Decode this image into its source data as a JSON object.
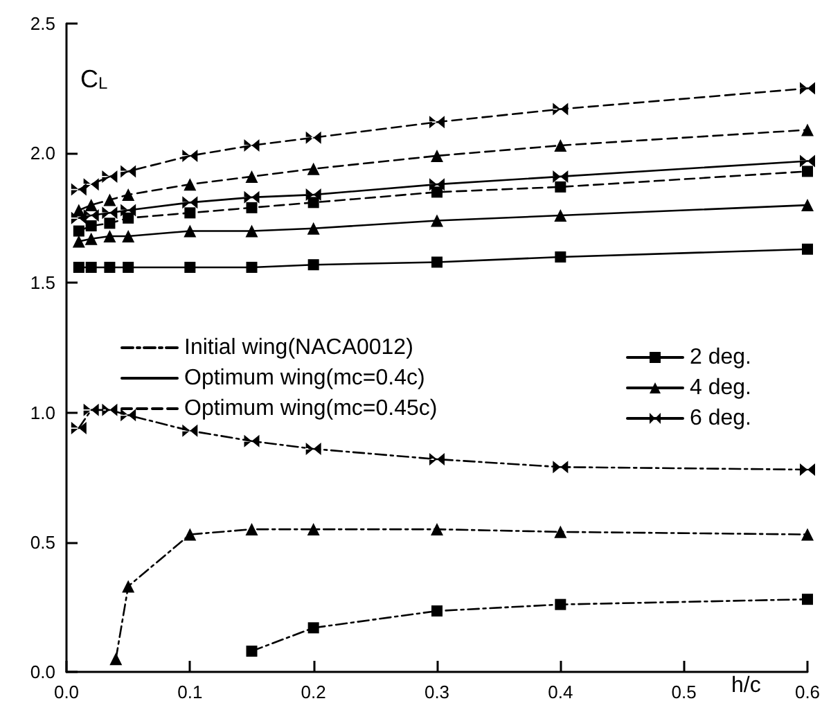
{
  "chart_data": {
    "type": "line",
    "xlabel": "h/c",
    "ylabel": "C$_{L}$",
    "xlim": [
      0,
      0.6
    ],
    "xticks": [
      {
        "value": 0,
        "label": "0.0"
      },
      0.1,
      0.2,
      0.3,
      0.4,
      0.5,
      0.6
    ],
    "ylim": [
      0,
      2.5
    ],
    "yticks": [
      {
        "value": 0,
        "label": "0.0"
      },
      0.5,
      {
        "value": 1,
        "label": "1.0"
      },
      1.5,
      {
        "value": 2,
        "label": "2.0"
      },
      2.5
    ],
    "grid": false,
    "legend": "center",
    "series": [
      {
        "color": "#000000",
        "line_style": "dashed",
        "marker": "star",
        "x": [
          0.01,
          0.02,
          0.035,
          0.05,
          0.1,
          0.15,
          0.2,
          0.3,
          0.4,
          0.6
        ],
        "values": [
          1.86,
          1.88,
          1.91,
          1.93,
          1.99,
          2.03,
          2.06,
          2.12,
          2.17,
          2.25
        ]
      },
      {
        "color": "#000000",
        "line_style": "dashed",
        "marker": "triangle",
        "x": [
          0.01,
          0.02,
          0.035,
          0.05,
          0.1,
          0.15,
          0.2,
          0.3,
          0.4,
          0.6
        ],
        "values": [
          1.78,
          1.8,
          1.82,
          1.84,
          1.88,
          1.91,
          1.94,
          1.99,
          2.03,
          2.09
        ]
      },
      {
        "color": "#000000",
        "line_style": "dashed",
        "marker": "square",
        "x": [
          0.01,
          0.02,
          0.035,
          0.05,
          0.1,
          0.15,
          0.2,
          0.3,
          0.4,
          0.6
        ],
        "values": [
          1.7,
          1.72,
          1.73,
          1.75,
          1.77,
          1.79,
          1.81,
          1.85,
          1.87,
          1.93
        ]
      },
      {
        "color": "#000000",
        "line_style": "solid",
        "marker": "star",
        "x": [
          0.01,
          0.02,
          0.035,
          0.05,
          0.1,
          0.15,
          0.2,
          0.3,
          0.4,
          0.6
        ],
        "values": [
          1.75,
          1.76,
          1.77,
          1.78,
          1.81,
          1.83,
          1.84,
          1.88,
          1.91,
          1.97
        ]
      },
      {
        "color": "#000000",
        "line_style": "solid",
        "marker": "triangle",
        "x": [
          0.01,
          0.02,
          0.035,
          0.05,
          0.1,
          0.15,
          0.2,
          0.3,
          0.4,
          0.6
        ],
        "values": [
          1.66,
          1.67,
          1.68,
          1.68,
          1.7,
          1.7,
          1.71,
          1.74,
          1.76,
          1.8
        ]
      },
      {
        "color": "#000000",
        "line_style": "solid",
        "marker": "square",
        "x": [
          0.01,
          0.02,
          0.035,
          0.05,
          0.1,
          0.15,
          0.2,
          0.3,
          0.4,
          0.6
        ],
        "values": [
          1.56,
          1.56,
          1.56,
          1.56,
          1.56,
          1.56,
          1.57,
          1.58,
          1.6,
          1.63
        ]
      },
      {
        "color": "#000000",
        "line_style": "dashdot",
        "marker": "star",
        "x": [
          0.01,
          0.02,
          0.035,
          0.05,
          0.1,
          0.15,
          0.2,
          0.3,
          0.4,
          0.6
        ],
        "values": [
          0.94,
          1.01,
          1.01,
          0.99,
          0.93,
          0.89,
          0.86,
          0.82,
          0.79,
          0.78
        ]
      },
      {
        "color": "#000000",
        "line_style": "dashdot",
        "marker": "triangle",
        "x": [
          0.04,
          0.05,
          0.1,
          0.15,
          0.2,
          0.3,
          0.4,
          0.6
        ],
        "values": [
          0.05,
          0.33,
          0.53,
          0.55,
          0.55,
          0.55,
          0.54,
          0.53
        ]
      },
      {
        "color": "#000000",
        "line_style": "dashdot",
        "marker": "square",
        "x": [
          0.15,
          0.2,
          0.3,
          0.4,
          0.6
        ],
        "values": [
          0.08,
          0.17,
          0.235,
          0.26,
          0.28
        ]
      },
      {
        "name": "Initial wing(NACA0012)",
        "color": "#000000",
        "line_style": "dashdot",
        "marker": "none"
      },
      {
        "name": "Optimum wing(mc=0.4c)",
        "color": "#000000",
        "line_style": "solid",
        "marker": "none"
      },
      {
        "name": "Optimum wing(mc=0.45c)",
        "color": "#000000",
        "line_style": "dashed",
        "marker": "none"
      },
      {
        "name": "2 deg.",
        "color": "#000000",
        "line_style": "solid",
        "marker": "square"
      },
      {
        "name": "4 deg.",
        "color": "#000000",
        "line_style": "solid",
        "marker": "triangle"
      },
      {
        "name": "6 deg.",
        "color": "#000000",
        "line_style": "solid",
        "marker": "star"
      }
    ]
  }
}
